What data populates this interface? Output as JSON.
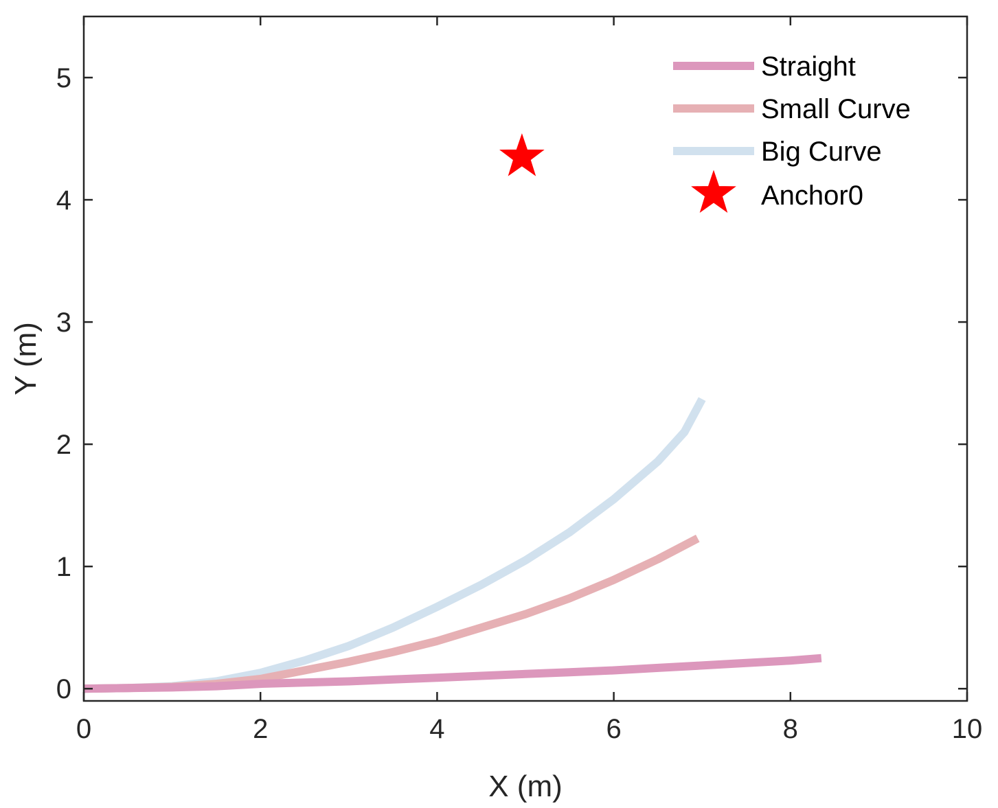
{
  "chart_data": {
    "type": "line",
    "xlabel": "X (m)",
    "ylabel": "Y (m)",
    "xlim": [
      0,
      10
    ],
    "ylim": [
      -0.1,
      5.5
    ],
    "xticks": [
      0,
      2,
      4,
      6,
      8,
      10
    ],
    "yticks": [
      0,
      1,
      2,
      3,
      4,
      5
    ],
    "xtick_labels": [
      "0",
      "2",
      "4",
      "6",
      "8",
      "10"
    ],
    "ytick_labels": [
      "0",
      "1",
      "2",
      "3",
      "4",
      "5"
    ],
    "grid": false,
    "legend_position": "top-right",
    "series": [
      {
        "name": "Straight",
        "color": "#dc97bc",
        "x": [
          0,
          0.5,
          1,
          1.5,
          2,
          2.5,
          3,
          3.5,
          4,
          4.5,
          5,
          5.5,
          6,
          6.5,
          7,
          7.5,
          8,
          8.35
        ],
        "y": [
          0,
          0.005,
          0.01,
          0.02,
          0.04,
          0.05,
          0.06,
          0.075,
          0.09,
          0.105,
          0.12,
          0.135,
          0.15,
          0.17,
          0.19,
          0.21,
          0.23,
          0.25
        ]
      },
      {
        "name": "Small Curve",
        "color": "#e6b0b4",
        "x": [
          0,
          0.5,
          1,
          1.5,
          2,
          2.5,
          3,
          3.5,
          4,
          4.5,
          5,
          5.5,
          6,
          6.5,
          6.95
        ],
        "y": [
          0,
          0.005,
          0.015,
          0.04,
          0.08,
          0.15,
          0.22,
          0.3,
          0.39,
          0.5,
          0.61,
          0.74,
          0.89,
          1.06,
          1.23
        ]
      },
      {
        "name": "Big Curve",
        "color": "#d1e1ee",
        "x": [
          0,
          0.5,
          1,
          1.5,
          2,
          2.5,
          3,
          3.5,
          4,
          4.5,
          5,
          5.5,
          6,
          6.5,
          6.8,
          7.0
        ],
        "y": [
          0,
          0.005,
          0.02,
          0.06,
          0.13,
          0.23,
          0.35,
          0.5,
          0.67,
          0.85,
          1.05,
          1.28,
          1.55,
          1.86,
          2.1,
          2.37
        ]
      }
    ],
    "markers": [
      {
        "name": "Anchor0",
        "x": 4.96,
        "y": 4.35,
        "color": "#ff0000",
        "shape": "pentagram"
      }
    ]
  }
}
